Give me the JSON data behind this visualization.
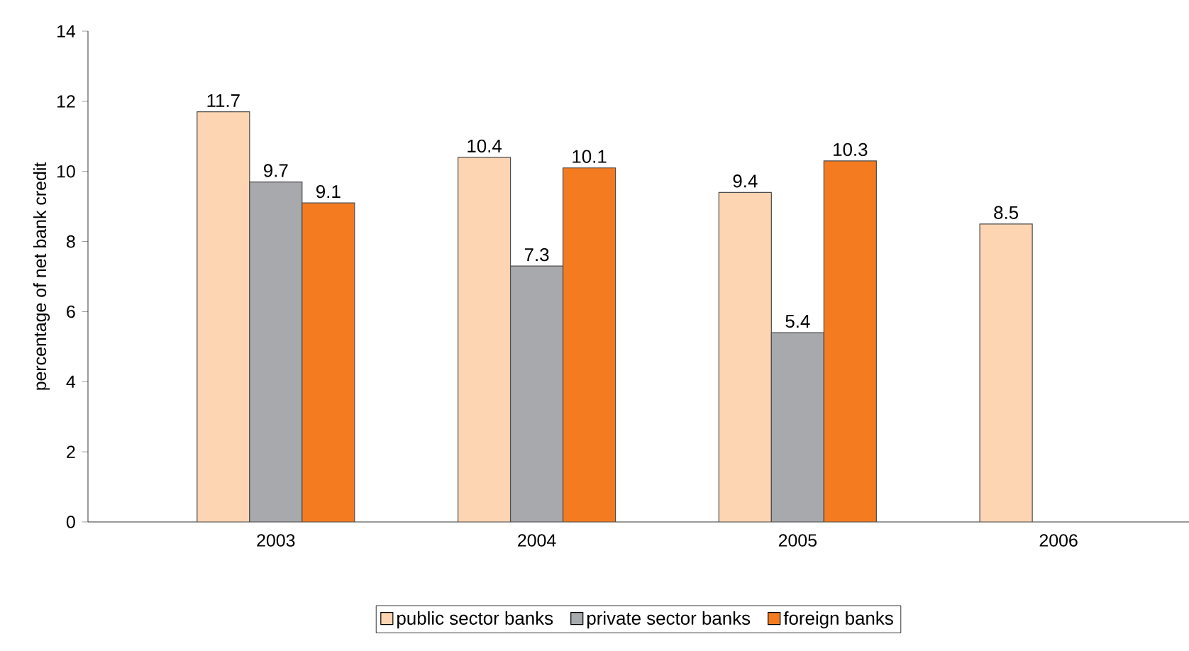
{
  "chart_data": {
    "type": "bar",
    "ylabel": "percentage of net bank credit",
    "categories": [
      "2003",
      "2004",
      "2005",
      "2006"
    ],
    "series": [
      {
        "name": "public sector banks",
        "color": "#fdd5b2",
        "values": [
          11.7,
          10.4,
          9.4,
          8.5
        ]
      },
      {
        "name": "private sector banks",
        "color": "#a7a9ac",
        "values": [
          9.7,
          7.3,
          5.4,
          null
        ]
      },
      {
        "name": "foreign banks",
        "color": "#f47b20",
        "values": [
          9.1,
          10.1,
          10.3,
          null
        ]
      }
    ],
    "ylim": [
      0,
      14
    ],
    "yticks": [
      0,
      2,
      4,
      6,
      8,
      10,
      12,
      14
    ],
    "data_labels": true,
    "legend": "bottom",
    "grid": false
  }
}
